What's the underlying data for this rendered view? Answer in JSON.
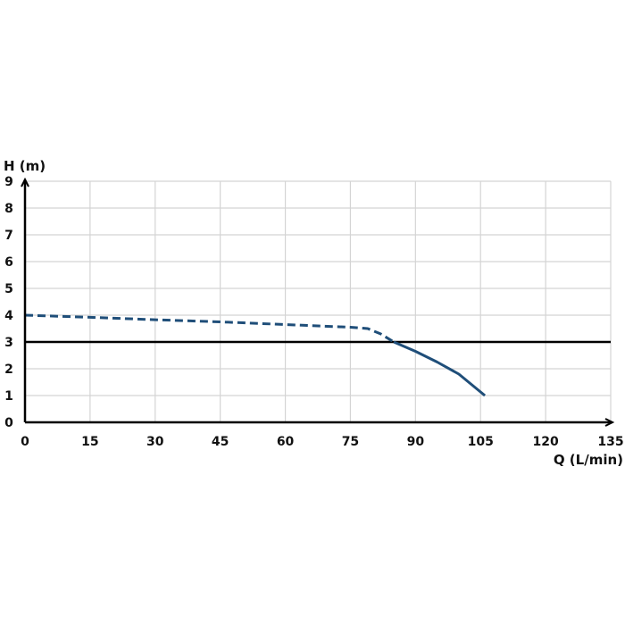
{
  "chart_data": {
    "type": "line",
    "title": "",
    "xlabel": "Q (L/min)",
    "ylabel": "H (m)",
    "xlim": [
      0,
      135
    ],
    "ylim": [
      0,
      9
    ],
    "xticks": [
      0,
      15,
      30,
      45,
      60,
      75,
      90,
      105,
      120,
      135
    ],
    "yticks": [
      0,
      1,
      2,
      3,
      4,
      5,
      6,
      7,
      8,
      9
    ],
    "grid": true,
    "series": [
      {
        "style": "dashed",
        "color": "#1f4e79",
        "x": [
          0,
          15,
          30,
          45,
          60,
          75,
          79,
          82,
          85
        ],
        "y": [
          4.0,
          3.92,
          3.83,
          3.75,
          3.65,
          3.55,
          3.5,
          3.3,
          3.0
        ]
      },
      {
        "style": "solid",
        "color": "#1f4e79",
        "x": [
          85,
          90,
          95,
          100,
          106
        ],
        "y": [
          3.0,
          2.65,
          2.25,
          1.8,
          1.0
        ]
      }
    ],
    "reference_lines": [
      {
        "orientation": "horizontal",
        "y": 3,
        "color": "#000000"
      }
    ]
  }
}
